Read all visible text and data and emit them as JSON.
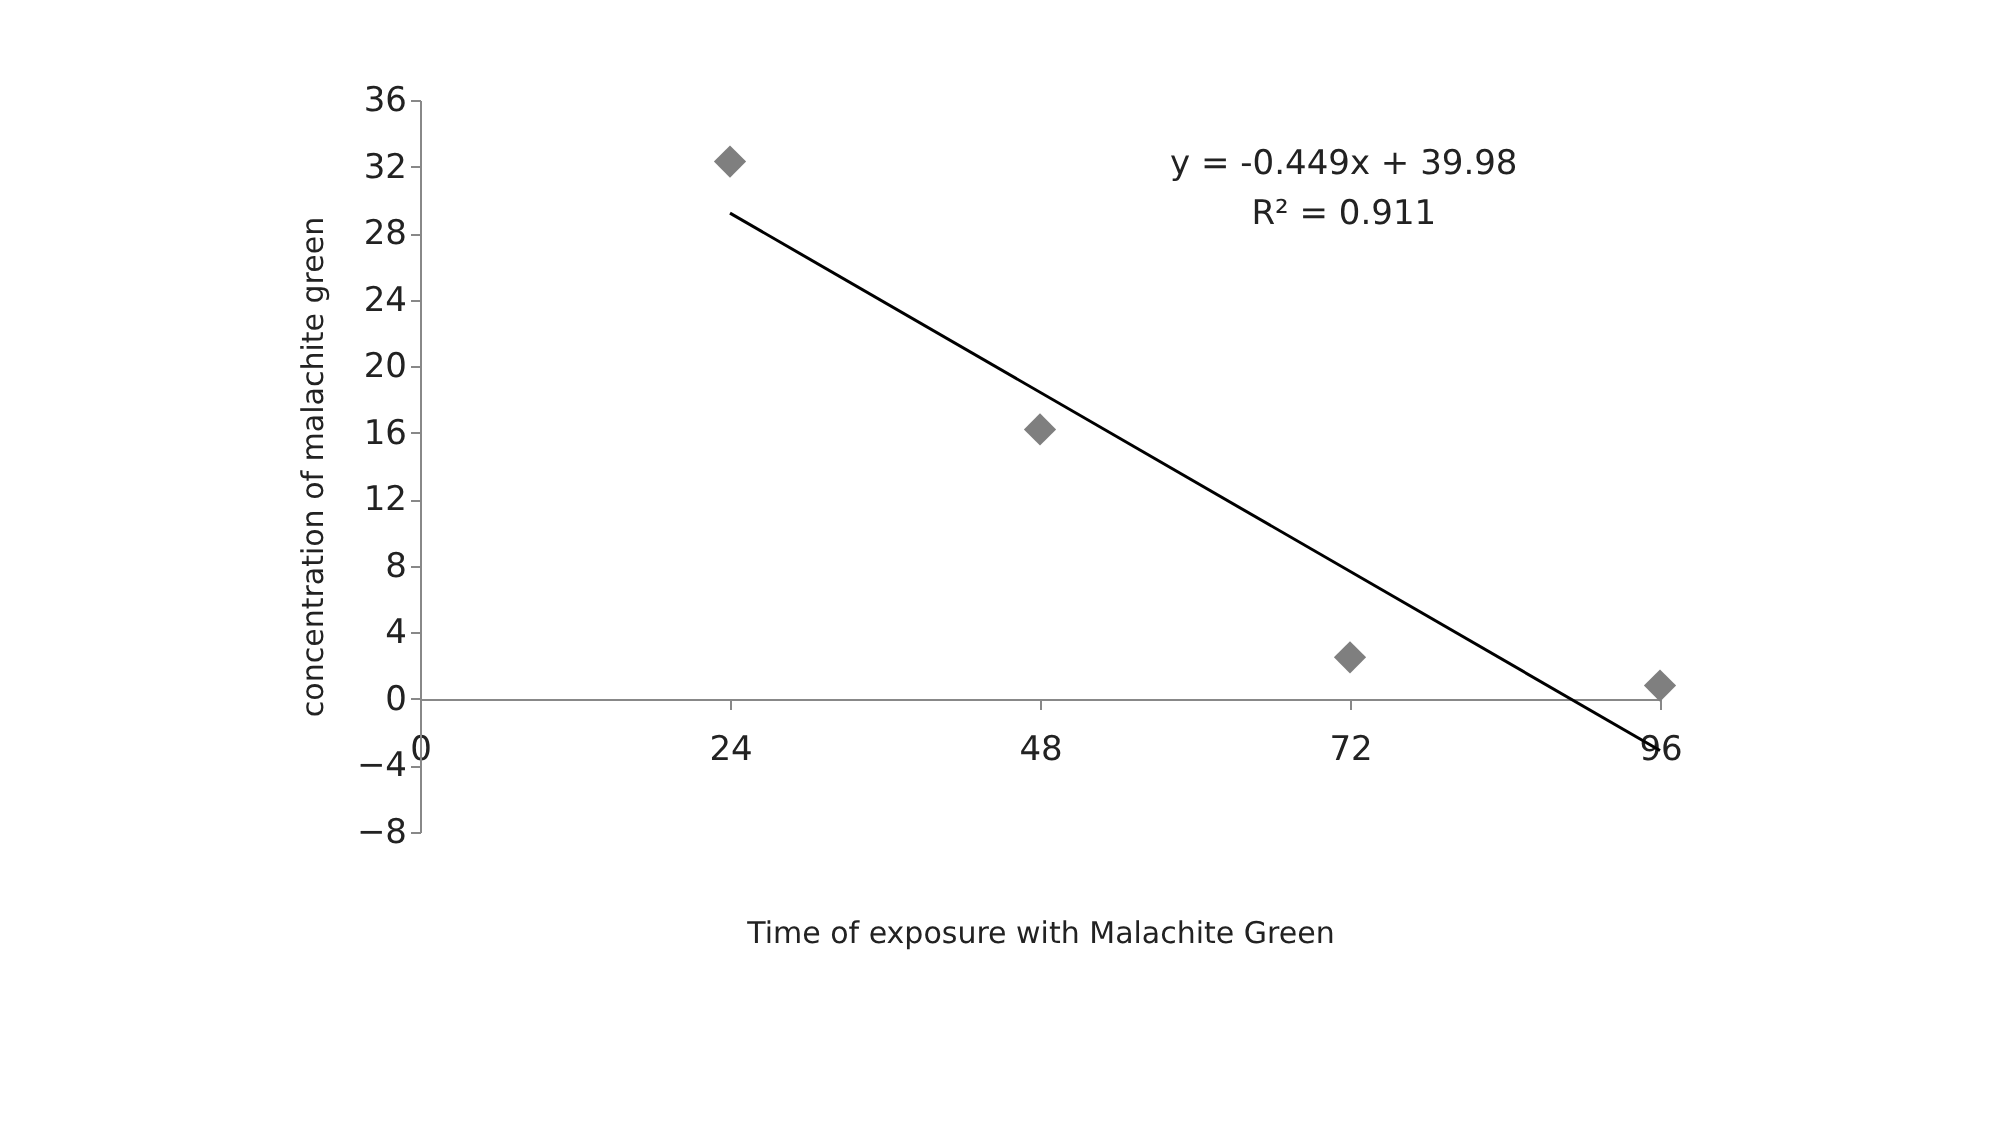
{
  "chart_data": {
    "type": "scatter",
    "xlabel": "Time of exposure with Malachite Green",
    "ylabel": "concentration of malachite green",
    "xlim": [
      0,
      96
    ],
    "xticks": [
      0,
      24,
      48,
      72,
      96
    ],
    "ylim": [
      -8,
      36
    ],
    "yticks": [
      -8,
      -4,
      0,
      4,
      8,
      12,
      16,
      20,
      24,
      28,
      32,
      36
    ],
    "grid": false,
    "series": [
      {
        "marker": "diamond",
        "color": "#7f7f7f",
        "x": [
          24,
          48,
          72,
          96
        ],
        "values": [
          32.3,
          16.2,
          2.5,
          0.8
        ]
      },
      {
        "type": "line",
        "color": "#000000",
        "x": [
          24,
          96
        ],
        "values": [
          29.2,
          -3.1
        ]
      }
    ],
    "annotations": [
      "y = -0.449x + 39.98",
      "R² = 0.911"
    ]
  }
}
